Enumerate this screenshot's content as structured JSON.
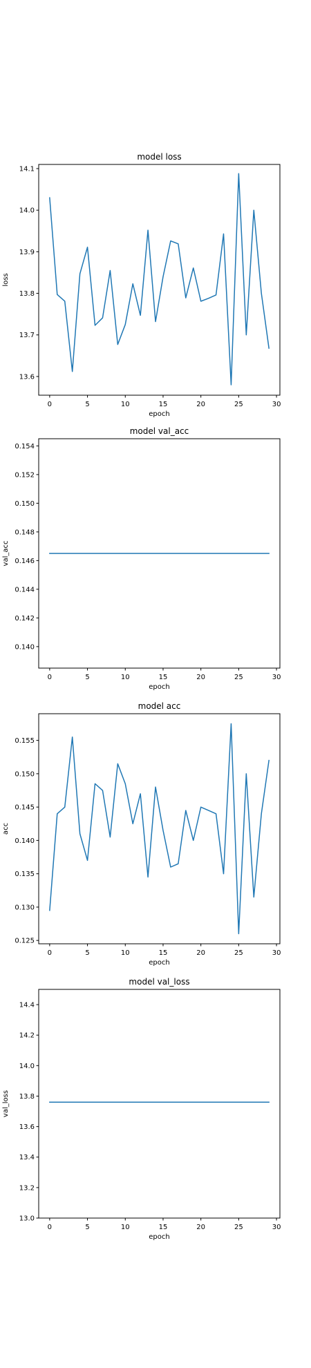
{
  "chart_data": [
    {
      "type": "line",
      "title": "model loss",
      "xlabel": "epoch",
      "ylabel": "loss",
      "xlim": [
        -1.45,
        30.45
      ],
      "ylim": [
        13.555,
        14.11
      ],
      "xticks": [
        0,
        5,
        10,
        15,
        20,
        25,
        30
      ],
      "yticks": [
        13.6,
        13.7,
        13.8,
        13.9,
        14.0,
        14.1
      ],
      "ytick_decimals": 1,
      "grid": false,
      "color": "#1f77b4",
      "x": [
        0,
        1,
        2,
        3,
        4,
        5,
        6,
        7,
        8,
        9,
        10,
        11,
        12,
        13,
        14,
        15,
        16,
        17,
        18,
        19,
        20,
        21,
        22,
        23,
        24,
        25,
        26,
        27,
        28,
        29
      ],
      "values": [
        14.03,
        13.797,
        13.781,
        13.612,
        13.847,
        13.911,
        13.723,
        13.741,
        13.855,
        13.677,
        13.725,
        13.823,
        13.747,
        13.952,
        13.732,
        13.84,
        13.926,
        13.919,
        13.789,
        13.861,
        13.781,
        13.788,
        13.796,
        13.943,
        13.58,
        14.088,
        13.7,
        14.0,
        13.8,
        13.668
      ]
    },
    {
      "type": "line",
      "title": "model val_acc",
      "xlabel": "epoch",
      "ylabel": "val_acc",
      "xlim": [
        -1.45,
        30.45
      ],
      "ylim": [
        0.1385,
        0.1545
      ],
      "xticks": [
        0,
        5,
        10,
        15,
        20,
        25,
        30
      ],
      "yticks": [
        0.14,
        0.142,
        0.144,
        0.146,
        0.148,
        0.15,
        0.152,
        0.154
      ],
      "ytick_decimals": 3,
      "grid": false,
      "color": "#1f77b4",
      "x": [
        0,
        1,
        2,
        3,
        4,
        5,
        6,
        7,
        8,
        9,
        10,
        11,
        12,
        13,
        14,
        15,
        16,
        17,
        18,
        19,
        20,
        21,
        22,
        23,
        24,
        25,
        26,
        27,
        28,
        29
      ],
      "values": [
        0.1465,
        0.1465,
        0.1465,
        0.1465,
        0.1465,
        0.1465,
        0.1465,
        0.1465,
        0.1465,
        0.1465,
        0.1465,
        0.1465,
        0.1465,
        0.1465,
        0.1465,
        0.1465,
        0.1465,
        0.1465,
        0.1465,
        0.1465,
        0.1465,
        0.1465,
        0.1465,
        0.1465,
        0.1465,
        0.1465,
        0.1465,
        0.1465,
        0.1465,
        0.1465
      ]
    },
    {
      "type": "line",
      "title": "model acc",
      "xlabel": "epoch",
      "ylabel": "acc",
      "xlim": [
        -1.45,
        30.45
      ],
      "ylim": [
        0.1245,
        0.159
      ],
      "xticks": [
        0,
        5,
        10,
        15,
        20,
        25,
        30
      ],
      "yticks": [
        0.125,
        0.13,
        0.135,
        0.14,
        0.145,
        0.15,
        0.155
      ],
      "ytick_decimals": 3,
      "grid": false,
      "color": "#1f77b4",
      "x": [
        0,
        1,
        2,
        3,
        4,
        5,
        6,
        7,
        8,
        9,
        10,
        11,
        12,
        13,
        14,
        15,
        16,
        17,
        18,
        19,
        20,
        21,
        22,
        23,
        24,
        25,
        26,
        27,
        28,
        29
      ],
      "values": [
        0.1295,
        0.144,
        0.145,
        0.1555,
        0.141,
        0.137,
        0.1485,
        0.1475,
        0.1405,
        0.1515,
        0.1485,
        0.1425,
        0.147,
        0.1345,
        0.148,
        0.1415,
        0.136,
        0.1365,
        0.1445,
        0.14,
        0.145,
        0.1445,
        0.144,
        0.135,
        0.1575,
        0.126,
        0.15,
        0.1315,
        0.144,
        0.152
      ]
    },
    {
      "type": "line",
      "title": "model val_loss",
      "xlabel": "epoch",
      "ylabel": "val_loss",
      "xlim": [
        -1.45,
        30.45
      ],
      "ylim": [
        13.0,
        14.5
      ],
      "xticks": [
        0,
        5,
        10,
        15,
        20,
        25,
        30
      ],
      "yticks": [
        13.0,
        13.2,
        13.4,
        13.6,
        13.8,
        14.0,
        14.2,
        14.4
      ],
      "ytick_decimals": 1,
      "grid": false,
      "color": "#1f77b4",
      "x": [
        0,
        1,
        2,
        3,
        4,
        5,
        6,
        7,
        8,
        9,
        10,
        11,
        12,
        13,
        14,
        15,
        16,
        17,
        18,
        19,
        20,
        21,
        22,
        23,
        24,
        25,
        26,
        27,
        28,
        29
      ],
      "values": [
        13.76,
        13.76,
        13.76,
        13.76,
        13.76,
        13.76,
        13.76,
        13.76,
        13.76,
        13.76,
        13.76,
        13.76,
        13.76,
        13.76,
        13.76,
        13.76,
        13.76,
        13.76,
        13.76,
        13.76,
        13.76,
        13.76,
        13.76,
        13.76,
        13.76,
        13.76,
        13.76,
        13.76,
        13.76,
        13.76
      ]
    }
  ]
}
